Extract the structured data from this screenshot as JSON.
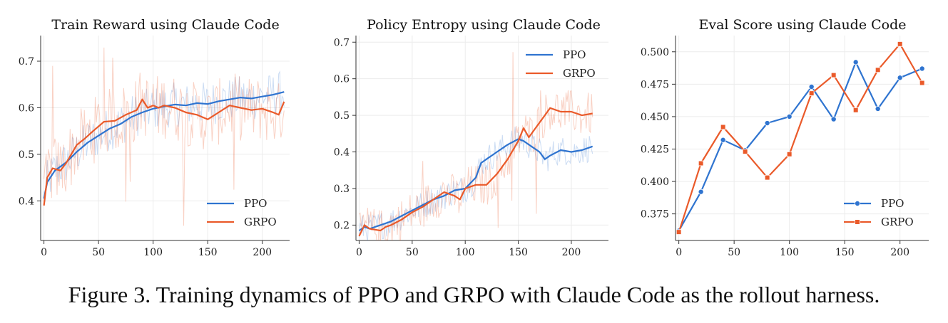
{
  "caption": "Figure 3. Training dynamics of PPO and GRPO with Claude Code as the rollout harness.",
  "colors": {
    "ppo": "#2f74d0",
    "grpo": "#ea5a2a",
    "grid": "#ececec",
    "axis": "#333333"
  },
  "chart_data": [
    {
      "type": "line",
      "title": "Train Reward using Claude Code",
      "xlabel": "",
      "ylabel": "",
      "xlim": [
        -3,
        225
      ],
      "ylim": [
        0.315,
        0.755
      ],
      "xticks": [
        0,
        50,
        100,
        150,
        200
      ],
      "yticks": [
        0.4,
        0.5,
        0.6,
        0.7
      ],
      "ytick_labels": [
        "0.4",
        "0.5",
        "0.6",
        "0.7"
      ],
      "legend": "bottom-right",
      "grid": true,
      "raw_noise": {
        "amplitude": 0.06,
        "spike_count": 8
      },
      "series": [
        {
          "name": "PPO",
          "color_key": "ppo",
          "x": [
            0,
            3,
            10,
            20,
            30,
            40,
            50,
            60,
            70,
            80,
            90,
            100,
            110,
            120,
            130,
            140,
            150,
            160,
            170,
            180,
            190,
            200,
            210,
            220
          ],
          "y": [
            0.405,
            0.44,
            0.465,
            0.482,
            0.505,
            0.525,
            0.54,
            0.555,
            0.565,
            0.58,
            0.59,
            0.598,
            0.603,
            0.607,
            0.605,
            0.61,
            0.608,
            0.614,
            0.618,
            0.622,
            0.62,
            0.624,
            0.628,
            0.634
          ]
        },
        {
          "name": "GRPO",
          "color_key": "grpo",
          "x": [
            0,
            3,
            8,
            15,
            20,
            25,
            30,
            38,
            45,
            55,
            65,
            75,
            85,
            90,
            95,
            100,
            105,
            110,
            120,
            130,
            140,
            150,
            160,
            170,
            180,
            190,
            200,
            210,
            215,
            220
          ],
          "y": [
            0.39,
            0.45,
            0.47,
            0.465,
            0.48,
            0.5,
            0.52,
            0.535,
            0.55,
            0.57,
            0.572,
            0.585,
            0.595,
            0.618,
            0.6,
            0.605,
            0.6,
            0.605,
            0.6,
            0.59,
            0.585,
            0.575,
            0.59,
            0.605,
            0.6,
            0.595,
            0.598,
            0.59,
            0.585,
            0.613
          ]
        }
      ]
    },
    {
      "type": "line",
      "title": "Policy Entropy using Claude Code",
      "xlabel": "",
      "ylabel": "",
      "xlim": [
        -3,
        235
      ],
      "ylim": [
        0.158,
        0.718
      ],
      "xticks": [
        0,
        50,
        100,
        150,
        200
      ],
      "yticks": [
        0.2,
        0.3,
        0.4,
        0.5,
        0.6,
        0.7
      ],
      "ytick_labels": [
        "0.2",
        "0.3",
        "0.4",
        "0.5",
        "0.6",
        "0.7"
      ],
      "legend": "top-right",
      "grid": true,
      "raw_noise": {
        "amplitude": 0.05,
        "spike_count": 6
      },
      "series": [
        {
          "name": "PPO",
          "color_key": "ppo",
          "x": [
            0,
            5,
            10,
            20,
            30,
            40,
            50,
            60,
            70,
            80,
            90,
            100,
            110,
            115,
            120,
            130,
            140,
            150,
            155,
            160,
            170,
            175,
            180,
            190,
            200,
            210,
            220
          ],
          "y": [
            0.185,
            0.195,
            0.19,
            0.2,
            0.21,
            0.225,
            0.24,
            0.255,
            0.27,
            0.28,
            0.295,
            0.3,
            0.33,
            0.37,
            0.38,
            0.4,
            0.42,
            0.435,
            0.43,
            0.42,
            0.4,
            0.38,
            0.39,
            0.405,
            0.4,
            0.405,
            0.415
          ]
        },
        {
          "name": "GRPO",
          "color_key": "grpo",
          "x": [
            0,
            5,
            10,
            20,
            25,
            30,
            40,
            50,
            60,
            70,
            80,
            90,
            95,
            100,
            110,
            120,
            130,
            140,
            150,
            155,
            160,
            170,
            175,
            180,
            190,
            200,
            210,
            220
          ],
          "y": [
            0.17,
            0.2,
            0.19,
            0.185,
            0.195,
            0.2,
            0.215,
            0.235,
            0.25,
            0.27,
            0.29,
            0.28,
            0.27,
            0.3,
            0.31,
            0.31,
            0.34,
            0.38,
            0.43,
            0.465,
            0.44,
            0.48,
            0.5,
            0.52,
            0.51,
            0.51,
            0.5,
            0.505
          ]
        }
      ]
    },
    {
      "type": "line",
      "title": "Eval Score using Claude Code",
      "xlabel": "",
      "ylabel": "",
      "xlim": [
        -3,
        226
      ],
      "ylim": [
        0.3545,
        0.5125
      ],
      "xticks": [
        0,
        50,
        100,
        150,
        200
      ],
      "yticks": [
        0.375,
        0.4,
        0.425,
        0.45,
        0.475,
        0.5
      ],
      "ytick_labels": [
        "0.375",
        "0.400",
        "0.425",
        "0.450",
        "0.475",
        "0.500"
      ],
      "legend": "bottom-right",
      "grid": true,
      "series": [
        {
          "name": "PPO",
          "color_key": "ppo",
          "marker": "circle",
          "x": [
            0,
            20,
            40,
            60,
            80,
            100,
            120,
            140,
            160,
            180,
            200,
            220
          ],
          "y": [
            0.362,
            0.392,
            0.432,
            0.424,
            0.445,
            0.45,
            0.473,
            0.448,
            0.492,
            0.456,
            0.48,
            0.487
          ]
        },
        {
          "name": "GRPO",
          "color_key": "grpo",
          "marker": "square",
          "x": [
            0,
            20,
            40,
            60,
            80,
            100,
            120,
            140,
            160,
            180,
            200,
            220
          ],
          "y": [
            0.361,
            0.414,
            0.442,
            0.423,
            0.403,
            0.421,
            0.468,
            0.482,
            0.455,
            0.486,
            0.506,
            0.476
          ]
        }
      ]
    }
  ]
}
